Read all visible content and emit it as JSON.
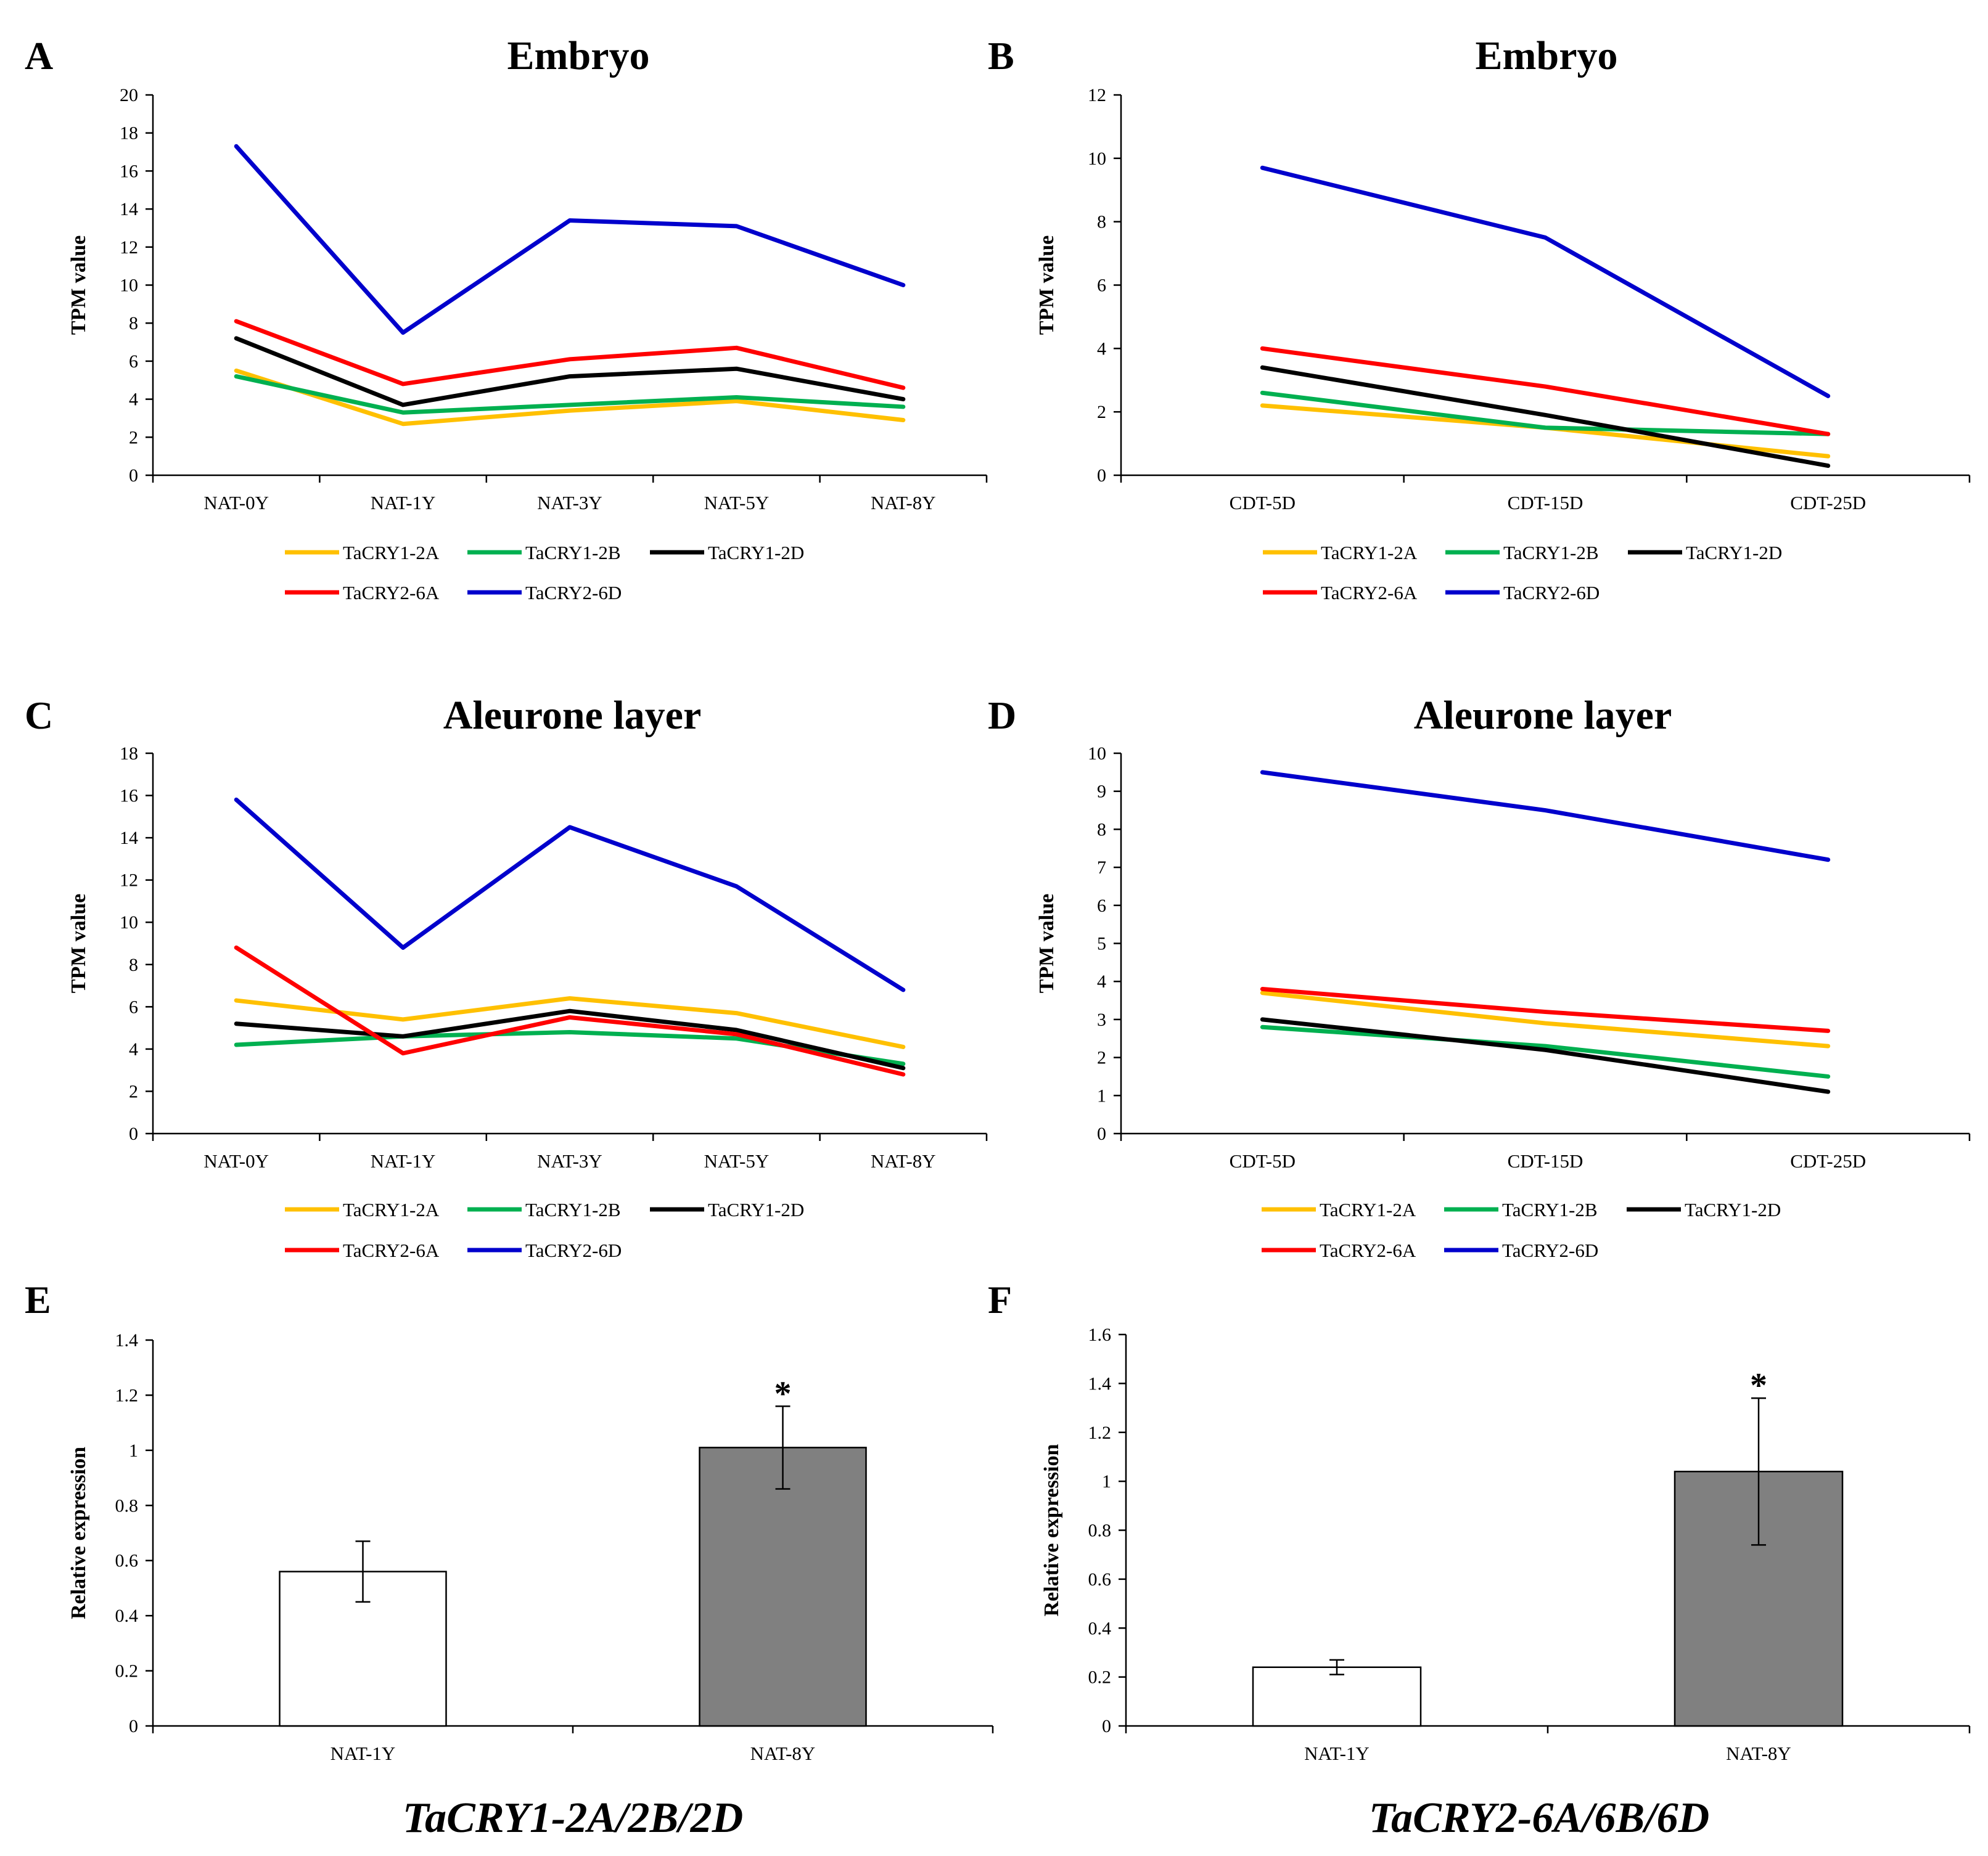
{
  "colors": {
    "TaCRY1-2A": "#FFC000",
    "TaCRY1-2B": "#00B050",
    "TaCRY1-2D": "#000000",
    "TaCRY2-6A": "#FF0000",
    "TaCRY2-6D": "#0000CC",
    "bar_white": "#FFFFFF",
    "bar_gray": "#808080"
  },
  "chart_data": [
    {
      "id": "A",
      "type": "line",
      "title": "Embryo",
      "ylabel": "TPM value",
      "xlabel": "",
      "ylim": [
        0,
        20
      ],
      "ytick_step": 2,
      "categories": [
        "NAT-0Y",
        "NAT-1Y",
        "NAT-3Y",
        "NAT-5Y",
        "NAT-8Y"
      ],
      "legend_rows": [
        [
          "TaCRY1-2A",
          "TaCRY1-2B",
          "TaCRY1-2D"
        ],
        [
          "TaCRY2-6A",
          "TaCRY2-6D"
        ]
      ],
      "series": [
        {
          "name": "TaCRY1-2A",
          "values": [
            5.5,
            2.7,
            3.4,
            3.9,
            2.9
          ]
        },
        {
          "name": "TaCRY1-2B",
          "values": [
            5.2,
            3.3,
            3.7,
            4.1,
            3.6
          ]
        },
        {
          "name": "TaCRY1-2D",
          "values": [
            7.2,
            3.7,
            5.2,
            5.6,
            4.0
          ]
        },
        {
          "name": "TaCRY2-6A",
          "values": [
            8.1,
            4.8,
            6.1,
            6.7,
            4.6
          ]
        },
        {
          "name": "TaCRY2-6D",
          "values": [
            17.3,
            7.5,
            13.4,
            13.1,
            10.0
          ]
        }
      ]
    },
    {
      "id": "B",
      "type": "line",
      "title": "Embryo",
      "ylabel": "TPM value",
      "xlabel": "",
      "ylim": [
        0,
        12
      ],
      "ytick_step": 2,
      "categories": [
        "CDT-5D",
        "CDT-15D",
        "CDT-25D"
      ],
      "legend_rows": [
        [
          "TaCRY1-2A",
          "TaCRY1-2B",
          "TaCRY1-2D"
        ],
        [
          "TaCRY2-6A",
          "TaCRY2-6D"
        ]
      ],
      "series": [
        {
          "name": "TaCRY1-2A",
          "values": [
            2.2,
            1.5,
            0.6
          ]
        },
        {
          "name": "TaCRY1-2B",
          "values": [
            2.6,
            1.5,
            1.3
          ]
        },
        {
          "name": "TaCRY1-2D",
          "values": [
            3.4,
            1.9,
            0.3
          ]
        },
        {
          "name": "TaCRY2-6A",
          "values": [
            4.0,
            2.8,
            1.3
          ]
        },
        {
          "name": "TaCRY2-6D",
          "values": [
            9.7,
            7.5,
            2.5
          ]
        }
      ]
    },
    {
      "id": "C",
      "type": "line",
      "title": "Aleurone layer",
      "ylabel": "TPM value",
      "xlabel": "",
      "ylim": [
        0,
        18
      ],
      "ytick_step": 2,
      "categories": [
        "NAT-0Y",
        "NAT-1Y",
        "NAT-3Y",
        "NAT-5Y",
        "NAT-8Y"
      ],
      "legend_rows": [
        [
          "TaCRY1-2A",
          "TaCRY1-2B",
          "TaCRY1-2D"
        ],
        [
          "TaCRY2-6A",
          "TaCRY2-6D"
        ]
      ],
      "series": [
        {
          "name": "TaCRY1-2A",
          "values": [
            6.3,
            5.4,
            6.4,
            5.7,
            4.1
          ]
        },
        {
          "name": "TaCRY1-2B",
          "values": [
            4.2,
            4.6,
            4.8,
            4.5,
            3.3
          ]
        },
        {
          "name": "TaCRY1-2D",
          "values": [
            5.2,
            4.6,
            5.8,
            4.9,
            3.1
          ]
        },
        {
          "name": "TaCRY2-6A",
          "values": [
            8.8,
            3.8,
            5.5,
            4.7,
            2.8
          ]
        },
        {
          "name": "TaCRY2-6D",
          "values": [
            15.8,
            8.8,
            14.5,
            11.7,
            6.8
          ]
        }
      ]
    },
    {
      "id": "D",
      "type": "line",
      "title": "Aleurone layer",
      "ylabel": "TPM value",
      "xlabel": "",
      "ylim": [
        0,
        10
      ],
      "ytick_step": 1,
      "categories": [
        "CDT-5D",
        "CDT-15D",
        "CDT-25D"
      ],
      "legend_rows": [
        [
          "TaCRY1-2A",
          "TaCRY1-2B",
          "TaCRY1-2D"
        ],
        [
          "TaCRY2-6A",
          "TaCRY2-6D"
        ]
      ],
      "series": [
        {
          "name": "TaCRY1-2A",
          "values": [
            3.7,
            2.9,
            2.3
          ]
        },
        {
          "name": "TaCRY1-2B",
          "values": [
            2.8,
            2.3,
            1.5
          ]
        },
        {
          "name": "TaCRY1-2D",
          "values": [
            3.0,
            2.2,
            1.1
          ]
        },
        {
          "name": "TaCRY2-6A",
          "values": [
            3.8,
            3.2,
            2.7
          ]
        },
        {
          "name": "TaCRY2-6D",
          "values": [
            9.5,
            8.5,
            7.2
          ]
        }
      ]
    },
    {
      "id": "E",
      "type": "bar",
      "title": "TaCRY1-2A/2B/2D",
      "ylabel": "Relative expression",
      "xlabel": "",
      "ylim": [
        0,
        1.4
      ],
      "ytick_step": 0.2,
      "categories": [
        "NAT-1Y",
        "NAT-8Y"
      ],
      "values": [
        0.56,
        1.01
      ],
      "errors": [
        0.11,
        0.15
      ],
      "significance": [
        "",
        "*"
      ]
    },
    {
      "id": "F",
      "type": "bar",
      "title": "TaCRY2-6A/6B/6D",
      "ylabel": "Relative expression",
      "xlabel": "",
      "ylim": [
        0,
        1.6
      ],
      "ytick_step": 0.2,
      "categories": [
        "NAT-1Y",
        "NAT-8Y"
      ],
      "values": [
        0.24,
        1.04
      ],
      "errors": [
        0.03,
        0.3
      ],
      "significance": [
        "",
        "*"
      ]
    }
  ]
}
